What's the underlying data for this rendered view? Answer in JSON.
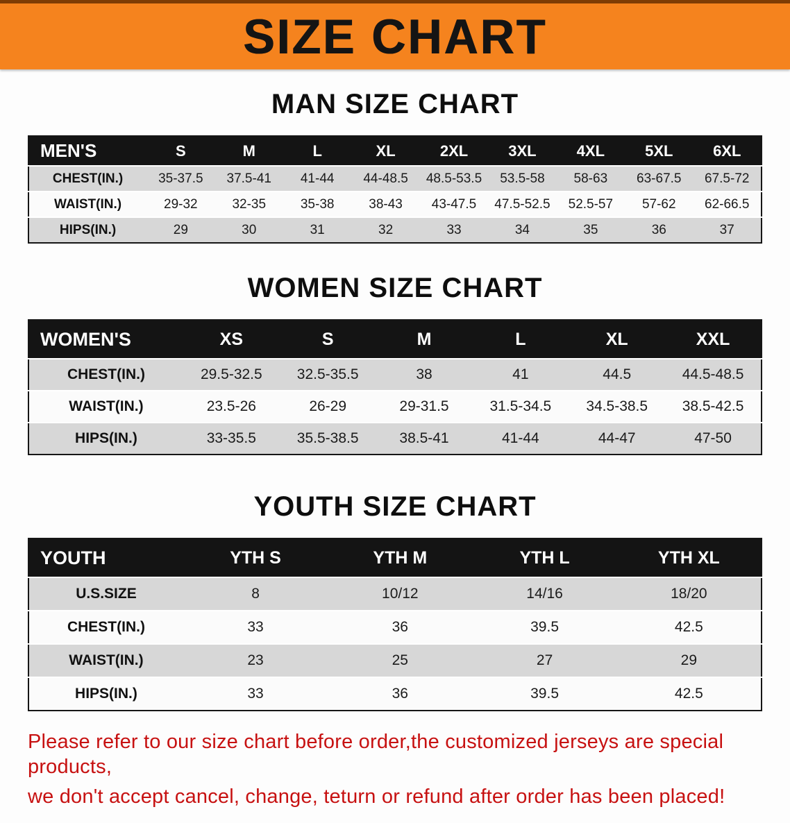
{
  "banner": {
    "title": "SIZE CHART"
  },
  "sections": [
    {
      "heading": "MAN SIZE CHART",
      "table": {
        "header": [
          "MEN'S",
          "S",
          "M",
          "L",
          "XL",
          "2XL",
          "3XL",
          "4XL",
          "5XL",
          "6XL"
        ],
        "rows": [
          [
            "CHEST(IN.)",
            "35-37.5",
            "37.5-41",
            "41-44",
            "44-48.5",
            "48.5-53.5",
            "53.5-58",
            "58-63",
            "63-67.5",
            "67.5-72"
          ],
          [
            "WAIST(IN.)",
            "29-32",
            "32-35",
            "35-38",
            "38-43",
            "43-47.5",
            "47.5-52.5",
            "52.5-57",
            "57-62",
            "62-66.5"
          ],
          [
            "HIPS(IN.)",
            "29",
            "30",
            "31",
            "32",
            "33",
            "34",
            "35",
            "36",
            "37"
          ]
        ]
      }
    },
    {
      "heading": "WOMEN SIZE CHART",
      "table": {
        "header": [
          "WOMEN'S",
          "XS",
          "S",
          "M",
          "L",
          "XL",
          "XXL"
        ],
        "rows": [
          [
            "CHEST(IN.)",
            "29.5-32.5",
            "32.5-35.5",
            "38",
            "41",
            "44.5",
            "44.5-48.5"
          ],
          [
            "WAIST(IN.)",
            "23.5-26",
            "26-29",
            "29-31.5",
            "31.5-34.5",
            "34.5-38.5",
            "38.5-42.5"
          ],
          [
            "HIPS(IN.)",
            "33-35.5",
            "35.5-38.5",
            "38.5-41",
            "41-44",
            "44-47",
            "47-50"
          ]
        ]
      }
    },
    {
      "heading": "YOUTH SIZE CHART",
      "table": {
        "header": [
          "YOUTH",
          "YTH S",
          "YTH M",
          "YTH L",
          "YTH XL"
        ],
        "rows": [
          [
            "U.S.SIZE",
            "8",
            "10/12",
            "14/16",
            "18/20"
          ],
          [
            "CHEST(IN.)",
            "33",
            "36",
            "39.5",
            "42.5"
          ],
          [
            "WAIST(IN.)",
            "23",
            "25",
            "27",
            "29"
          ],
          [
            "HIPS(IN.)",
            "33",
            "36",
            "39.5",
            "42.5"
          ]
        ]
      }
    }
  ],
  "footer": {
    "line1": "Please refer to our size chart before order,the customized jerseys are special products,",
    "line2": "we don't accept cancel, change, teturn or refund after order has been placed!"
  },
  "colors": {
    "banner_bg": "#f5831e",
    "table_header_bg": "#141414",
    "row_shade": "#d7d7d7",
    "footer_red": "#c71111"
  }
}
